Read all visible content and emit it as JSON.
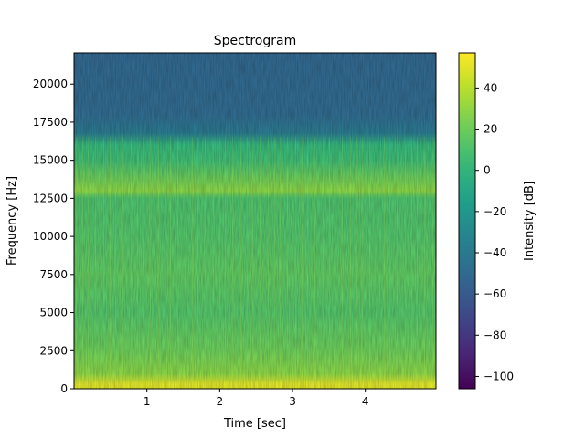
{
  "chart_data": {
    "type": "heatmap",
    "title": "Spectrogram",
    "xlabel": "Time [sec]",
    "ylabel": "Frequency [Hz]",
    "colorbar_label": "Intensity [dB]",
    "colormap": "viridis",
    "x_ticks": [
      1,
      2,
      3,
      4
    ],
    "y_ticks": [
      0,
      2500,
      5000,
      7500,
      10000,
      12500,
      15000,
      17500,
      20000
    ],
    "colorbar_ticks": [
      -100,
      -80,
      -60,
      -40,
      -20,
      0,
      20,
      40
    ],
    "xlim": [
      0.0,
      4.97
    ],
    "ylim": [
      0,
      22050
    ],
    "clim": [
      -106,
      57
    ],
    "grid": false,
    "intensity_profile_db": [
      {
        "freq_hz": 0,
        "db": 48
      },
      {
        "freq_hz": 300,
        "db": 50
      },
      {
        "freq_hz": 1000,
        "db": 28
      },
      {
        "freq_hz": 2500,
        "db": 20
      },
      {
        "freq_hz": 5000,
        "db": 12
      },
      {
        "freq_hz": 7500,
        "db": 16
      },
      {
        "freq_hz": 10000,
        "db": 12
      },
      {
        "freq_hz": 12500,
        "db": 10
      },
      {
        "freq_hz": 13000,
        "db": 28
      },
      {
        "freq_hz": 15000,
        "db": 6
      },
      {
        "freq_hz": 16000,
        "db": 2
      },
      {
        "freq_hz": 16800,
        "db": -40
      },
      {
        "freq_hz": 18000,
        "db": -50
      },
      {
        "freq_hz": 22050,
        "db": -52
      }
    ]
  }
}
